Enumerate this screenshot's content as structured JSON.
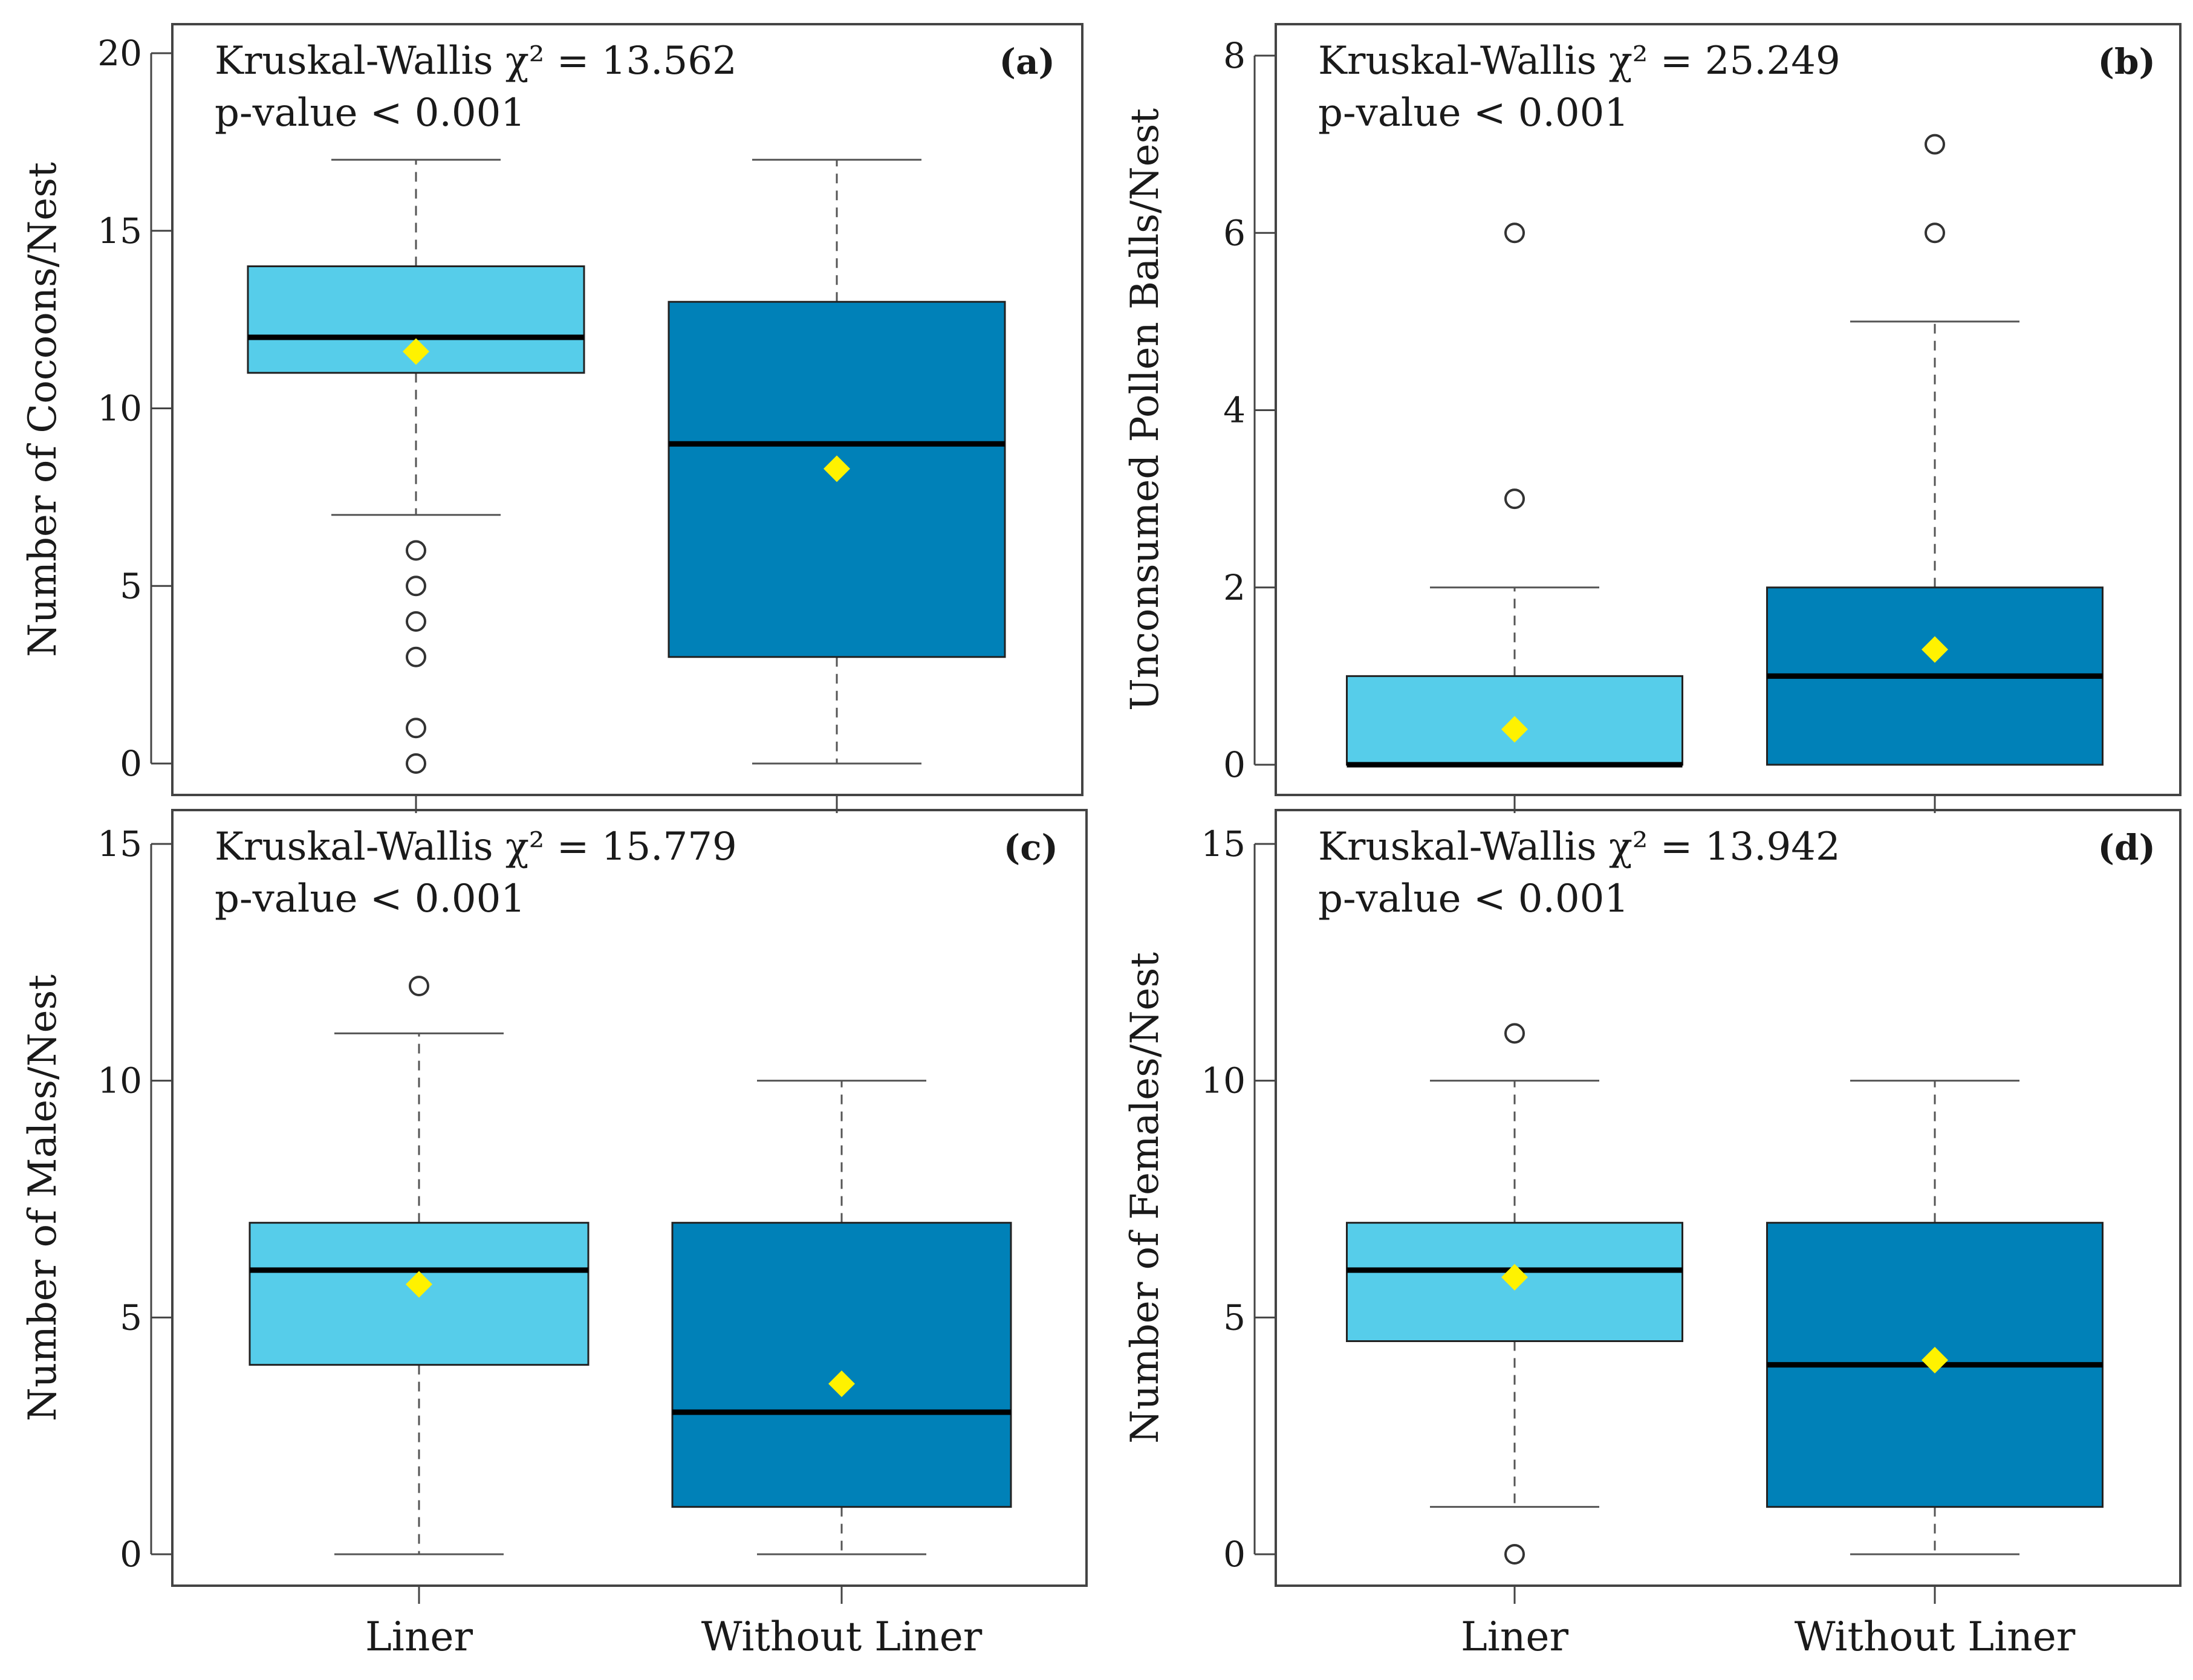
{
  "figure": {
    "x_categories": [
      "Liner",
      "Without Liner"
    ],
    "colors": {
      "liner": "#56CDEA",
      "without_liner": "#0081B8",
      "mean_marker": "#FFF200",
      "median": "#000000",
      "axis": "#444444"
    }
  },
  "chart_data": [
    {
      "type": "box",
      "panel": "(a)",
      "ylabel": "Number of Cocoons/Nest",
      "test_label": "Kruskal-Wallis χ² = 13.562",
      "p_label": "p-value < 0.001",
      "ylim": [
        0,
        20
      ],
      "yticks": [
        0,
        5,
        10,
        15,
        20
      ],
      "show_xlabels": false,
      "groups": [
        {
          "name": "Liner",
          "whisker_low": 7,
          "q1": 11,
          "median": 12,
          "q3": 14,
          "whisker_high": 17,
          "mean": 11.6,
          "outliers": [
            6,
            5,
            4,
            3,
            1,
            0
          ]
        },
        {
          "name": "Without Liner",
          "whisker_low": 0,
          "q1": 3,
          "median": 9,
          "q3": 13,
          "whisker_high": 17,
          "mean": 8.3,
          "outliers": []
        }
      ]
    },
    {
      "type": "box",
      "panel": "(b)",
      "ylabel": "Unconsumed Pollen Balls/Nest",
      "test_label": "Kruskal-Wallis χ² = 25.249",
      "p_label": "p-value < 0.001",
      "ylim": [
        0,
        8
      ],
      "yticks": [
        0,
        2,
        4,
        6,
        8
      ],
      "show_xlabels": false,
      "groups": [
        {
          "name": "Liner",
          "whisker_low": 0,
          "q1": 0,
          "median": 0,
          "q3": 1,
          "whisker_high": 2,
          "mean": 0.4,
          "outliers": [
            3,
            6
          ]
        },
        {
          "name": "Without Liner",
          "whisker_low": 0,
          "q1": 0,
          "median": 1,
          "q3": 2,
          "whisker_high": 5,
          "mean": 1.3,
          "outliers": [
            6,
            7
          ]
        }
      ]
    },
    {
      "type": "box",
      "panel": "(c)",
      "ylabel": "Number of Males/Nest",
      "test_label": "Kruskal-Wallis χ² = 15.779",
      "p_label": "p-value < 0.001",
      "ylim": [
        0,
        15
      ],
      "yticks": [
        0,
        5,
        10,
        15
      ],
      "show_xlabels": true,
      "groups": [
        {
          "name": "Liner",
          "whisker_low": 0,
          "q1": 4,
          "median": 6,
          "q3": 7,
          "whisker_high": 11,
          "mean": 5.7,
          "outliers": [
            12
          ]
        },
        {
          "name": "Without Liner",
          "whisker_low": 0,
          "q1": 1,
          "median": 3,
          "q3": 7,
          "whisker_high": 10,
          "mean": 3.6,
          "outliers": []
        }
      ]
    },
    {
      "type": "box",
      "panel": "(d)",
      "ylabel": "Number of Females/Nest",
      "test_label": "Kruskal-Wallis χ² = 13.942",
      "p_label": "p-value < 0.001",
      "ylim": [
        0,
        15
      ],
      "yticks": [
        0,
        5,
        10,
        15
      ],
      "show_xlabels": true,
      "groups": [
        {
          "name": "Liner",
          "whisker_low": 1,
          "q1": 4.5,
          "median": 6,
          "q3": 7,
          "whisker_high": 10,
          "mean": 5.85,
          "outliers": [
            11,
            0
          ]
        },
        {
          "name": "Without Liner",
          "whisker_low": 0,
          "q1": 1,
          "median": 4,
          "q3": 7,
          "whisker_high": 10,
          "mean": 4.1,
          "outliers": []
        }
      ]
    }
  ]
}
